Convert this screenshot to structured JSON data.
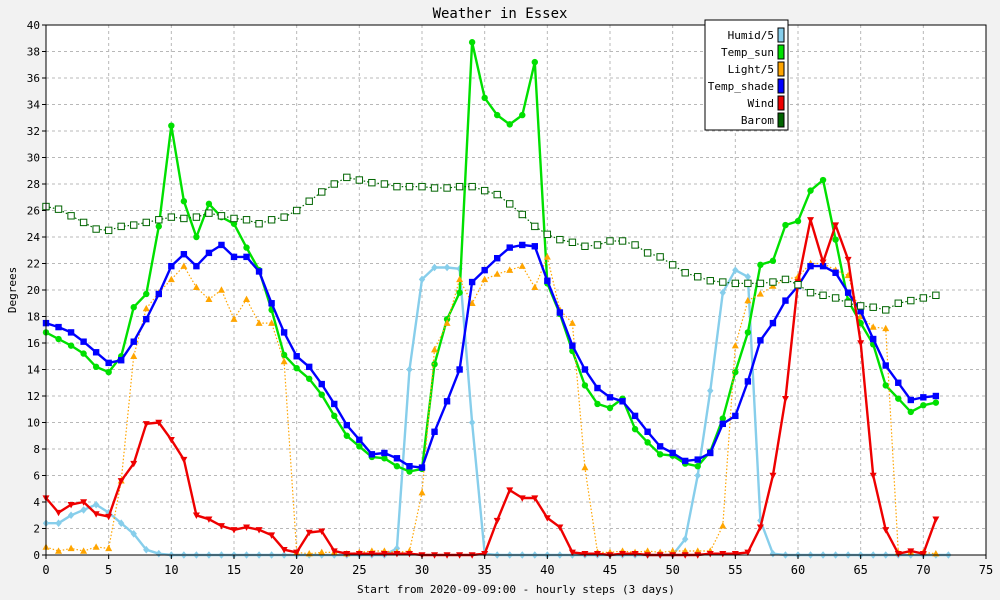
{
  "chart_data": {
    "type": "line",
    "title": "Weather in Essex",
    "xlabel": "Start from 2020-09-09:00 - hourly steps (3 days)",
    "ylabel": "Degrees",
    "xlim": [
      0,
      75
    ],
    "ylim": [
      0,
      40
    ],
    "x_ticks": [
      0,
      5,
      10,
      15,
      20,
      25,
      30,
      35,
      40,
      45,
      50,
      55,
      60,
      65,
      70,
      75
    ],
    "y_ticks": [
      0,
      2,
      4,
      6,
      8,
      10,
      12,
      14,
      16,
      18,
      20,
      22,
      24,
      26,
      28,
      30,
      32,
      34,
      36,
      38,
      40
    ],
    "grid": true,
    "legend_position": "top-right",
    "series": [
      {
        "name": "Humid/5",
        "color": "#87ceeb",
        "marker": "diamond",
        "line": "solid",
        "values": [
          2.4,
          2.4,
          3,
          3.4,
          3.8,
          3.2,
          2.4,
          1.6,
          0.4,
          0.1,
          0,
          0,
          0,
          0,
          0,
          0,
          0,
          0,
          0,
          0,
          0,
          0,
          0,
          0,
          0,
          0,
          0,
          0,
          0.5,
          14,
          20.8,
          21.7,
          21.7,
          21.6,
          10,
          0.1,
          0,
          0,
          0,
          0,
          0,
          0,
          0,
          0,
          0,
          0,
          0,
          0,
          0,
          0,
          0,
          1.2,
          6,
          12.4,
          19.8,
          21.5,
          21,
          2.6,
          0.1,
          0,
          0,
          0,
          0,
          0,
          0,
          0,
          0,
          0,
          0,
          0,
          0,
          0,
          0
        ]
      },
      {
        "name": "Temp_sun",
        "color": "#00e000",
        "marker": "circle",
        "line": "solid",
        "values": [
          16.8,
          16.3,
          15.8,
          15.2,
          14.2,
          13.8,
          15,
          18.7,
          19.7,
          24.8,
          32.4,
          26.7,
          24,
          26.5,
          25.5,
          25,
          23.2,
          21.5,
          18.5,
          15.1,
          14.1,
          13.3,
          12.1,
          10.5,
          9,
          8.2,
          7.4,
          7.3,
          6.7,
          6.3,
          6.5,
          14.4,
          17.8,
          19.8,
          38.7,
          34.5,
          33.2,
          32.5,
          33.2,
          37.2,
          20.5,
          18.2,
          15.4,
          12.8,
          11.4,
          11.1,
          11.8,
          9.5,
          8.5,
          7.6,
          7.5,
          6.9,
          6.7,
          7.8,
          10.3,
          13.8,
          16.8,
          21.9,
          22.2,
          24.9,
          25.2,
          27.5,
          28.3,
          23.8,
          19.2,
          17.5,
          15.9,
          12.8,
          11.8,
          10.8,
          11.3,
          11.5
        ]
      },
      {
        "name": "Light/5",
        "color": "#ffa500",
        "marker": "triangle",
        "line": "dotted",
        "values": [
          0.6,
          0.3,
          0.5,
          0.3,
          0.6,
          0.5,
          5.6,
          15,
          18.6,
          19.8,
          20.8,
          21.8,
          20.2,
          19.3,
          20,
          17.8,
          19.3,
          17.5,
          17.5,
          14.6,
          0.2,
          0.1,
          0.2,
          0.2,
          0.1,
          0.2,
          0.3,
          0.3,
          0.2,
          0.3,
          4.7,
          15.5,
          17.5,
          20.8,
          19,
          20.8,
          21.2,
          21.5,
          21.8,
          20.2,
          22.5,
          18.5,
          17.5,
          6.6,
          0.2,
          0.2,
          0.3,
          0.2,
          0.3,
          0.2,
          0.3,
          0.3,
          0.3,
          0.3,
          2.2,
          15.8,
          19.2,
          19.7,
          20.3,
          20.8,
          21,
          22,
          22,
          21.5,
          21.1,
          18,
          17.2,
          17.1,
          0.2,
          0.2,
          0.2,
          0.1
        ]
      },
      {
        "name": "Temp_shade",
        "color": "#0000ff",
        "marker": "square",
        "line": "solid",
        "values": [
          17.5,
          17.2,
          16.8,
          16.1,
          15.3,
          14.5,
          14.7,
          16.1,
          17.8,
          19.7,
          21.8,
          22.7,
          21.8,
          22.8,
          23.4,
          22.5,
          22.5,
          21.4,
          19,
          16.8,
          15,
          14.2,
          12.9,
          11.4,
          9.8,
          8.7,
          7.6,
          7.7,
          7.3,
          6.7,
          6.6,
          9.3,
          11.6,
          14,
          20.6,
          21.5,
          22.4,
          23.2,
          23.4,
          23.3,
          20.7,
          18.3,
          15.8,
          14,
          12.6,
          11.9,
          11.6,
          10.5,
          9.3,
          8.2,
          7.7,
          7.1,
          7.2,
          7.7,
          9.9,
          10.5,
          13.1,
          16.2,
          17.5,
          19.2,
          20.3,
          21.8,
          21.8,
          21.3,
          19.8,
          18.4,
          16.3,
          14.3,
          13,
          11.7,
          11.9,
          12
        ]
      },
      {
        "name": "Wind",
        "color": "#ee0000",
        "marker": "triangle-down",
        "line": "solid",
        "values": [
          4.3,
          3.2,
          3.8,
          4,
          3.1,
          2.9,
          5.6,
          6.9,
          9.9,
          10,
          8.7,
          7.2,
          3,
          2.7,
          2.2,
          1.9,
          2.1,
          1.9,
          1.5,
          0.4,
          0.2,
          1.7,
          1.8,
          0.3,
          0.1,
          0.1,
          0.1,
          0.1,
          0.1,
          0.1,
          0,
          0,
          0,
          0,
          0,
          0.1,
          2.6,
          4.9,
          4.3,
          4.3,
          2.8,
          2.1,
          0.2,
          0.1,
          0.1,
          0,
          0.1,
          0.1,
          0,
          0,
          0,
          0,
          0,
          0.1,
          0.1,
          0.1,
          0.2,
          2.1,
          6,
          11.8,
          20.6,
          25.3,
          22.1,
          24.9,
          22.3,
          16,
          6,
          1.9,
          0.1,
          0.3,
          0.1,
          2.7
        ]
      },
      {
        "name": "Barom",
        "color": "#006400",
        "marker": "square-open",
        "line": "dotted",
        "values": [
          26.3,
          26.1,
          25.6,
          25.1,
          24.6,
          24.5,
          24.8,
          24.9,
          25.1,
          25.3,
          25.5,
          25.4,
          25.5,
          25.8,
          25.6,
          25.4,
          25.3,
          25,
          25.3,
          25.5,
          26,
          26.7,
          27.4,
          28,
          28.5,
          28.3,
          28.1,
          28,
          27.8,
          27.8,
          27.8,
          27.7,
          27.7,
          27.8,
          27.8,
          27.5,
          27.2,
          26.5,
          25.7,
          24.8,
          24.2,
          23.8,
          23.6,
          23.3,
          23.4,
          23.7,
          23.7,
          23.4,
          22.8,
          22.5,
          21.9,
          21.3,
          21,
          20.7,
          20.6,
          20.5,
          20.5,
          20.5,
          20.6,
          20.8,
          20.4,
          19.8,
          19.6,
          19.4,
          19,
          18.8,
          18.7,
          18.5,
          19,
          19.2,
          19.4,
          19.6
        ]
      }
    ]
  }
}
